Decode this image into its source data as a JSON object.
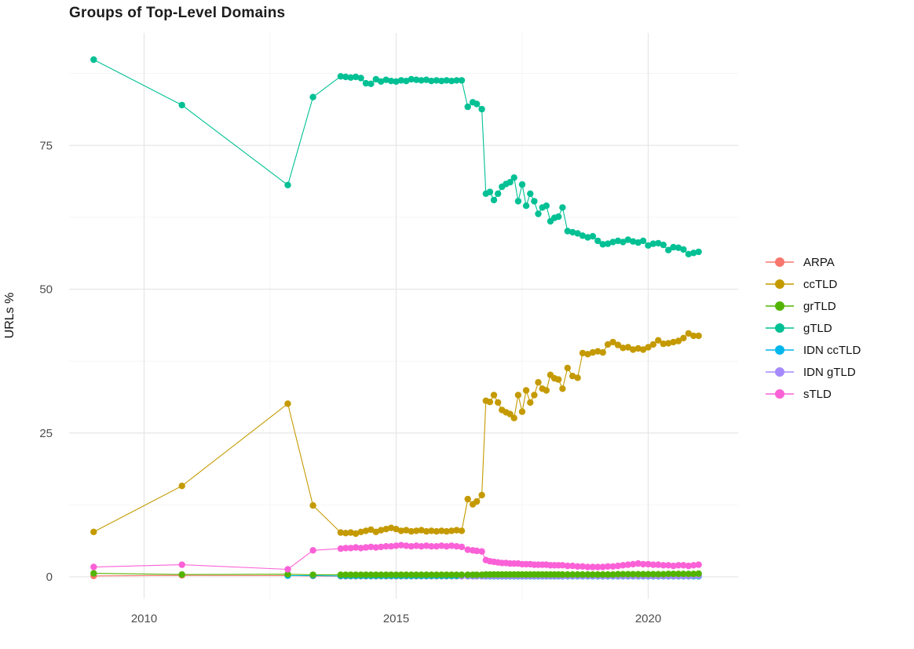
{
  "chart_data": {
    "type": "scatter-line",
    "title": "Groups of Top-Level Domains",
    "ylabel": "URLs %",
    "xlabel": "",
    "grid": true,
    "legend_position": "right",
    "x_ticks": [
      2010,
      2015,
      2020
    ],
    "x_minor": [
      2012.5,
      2017.5
    ],
    "y_ticks": [
      0,
      25,
      50,
      75
    ],
    "y_minor": [
      12.5,
      37.5,
      62.5,
      87.5
    ],
    "xlim": [
      2008.5,
      2021.8
    ],
    "ylim": [
      -3.8,
      94.5
    ],
    "x": [
      2009.0,
      2010.75,
      2012.85,
      2013.35,
      2013.9,
      2014.0,
      2014.1,
      2014.2,
      2014.3,
      2014.4,
      2014.5,
      2014.6,
      2014.7,
      2014.8,
      2014.9,
      2015.0,
      2015.1,
      2015.2,
      2015.3,
      2015.4,
      2015.5,
      2015.6,
      2015.7,
      2015.8,
      2015.9,
      2016.0,
      2016.1,
      2016.2,
      2016.3,
      2016.42,
      2016.52,
      2016.6,
      2016.7,
      2016.78,
      2016.86,
      2016.94,
      2017.02,
      2017.1,
      2017.18,
      2017.26,
      2017.34,
      2017.42,
      2017.5,
      2017.58,
      2017.66,
      2017.74,
      2017.82,
      2017.9,
      2017.98,
      2018.06,
      2018.14,
      2018.22,
      2018.3,
      2018.4,
      2018.5,
      2018.6,
      2018.7,
      2018.8,
      2018.9,
      2019.0,
      2019.1,
      2019.2,
      2019.3,
      2019.4,
      2019.5,
      2019.6,
      2019.7,
      2019.8,
      2019.9,
      2020.0,
      2020.1,
      2020.2,
      2020.3,
      2020.4,
      2020.5,
      2020.6,
      2020.7,
      2020.8,
      2020.9,
      2021.0
    ],
    "series": [
      {
        "name": "ARPA",
        "color": "#F8766D",
        "start_index": 0,
        "values": [
          0.15,
          0.25,
          0.2,
          0.15,
          0.1,
          0.1,
          0.1,
          0.1,
          0.1,
          0.1,
          0.1,
          0.1,
          0.1,
          0.1,
          0.1,
          0.1,
          0.1,
          0.1,
          0.1,
          0.1,
          0.1,
          0.1,
          0.1,
          0.1,
          0.1,
          0.1,
          0.1,
          0.1,
          0.1,
          0.1,
          0.1,
          0.1,
          0.1,
          0.1,
          0.1,
          0.1,
          0.1,
          0.1,
          0.1,
          0.1,
          0.1,
          0.1,
          0.1,
          0.1,
          0.1,
          0.1,
          0.1,
          0.1,
          0.1,
          0.1,
          0.1,
          0.1,
          0.1,
          0.1,
          0.1,
          0.1,
          0.1,
          0.1,
          0.1,
          0.1,
          0.1,
          0.1,
          0.1,
          0.1,
          0.1,
          0.1,
          0.1,
          0.1,
          0.1,
          0.1,
          0.1,
          0.1,
          0.1,
          0.1,
          0.1,
          0.1,
          0.1,
          0.1,
          0.1,
          0.1
        ]
      },
      {
        "name": "ccTLD",
        "color": "#C49A00",
        "start_index": 0,
        "values": [
          7.8,
          15.8,
          30.1,
          12.4,
          7.7,
          7.6,
          7.7,
          7.5,
          7.8,
          8.0,
          8.2,
          7.8,
          8.1,
          8.3,
          8.5,
          8.3,
          8.0,
          8.1,
          7.9,
          8.0,
          8.1,
          7.9,
          8.0,
          7.9,
          8.0,
          7.9,
          8.0,
          8.1,
          8.0,
          13.5,
          12.6,
          13.1,
          14.2,
          30.6,
          30.4,
          31.6,
          30.3,
          29.0,
          28.6,
          28.3,
          27.6,
          31.6,
          28.7,
          32.4,
          30.3,
          31.6,
          33.8,
          32.7,
          32.4,
          35.1,
          34.5,
          34.3,
          32.7,
          36.3,
          34.9,
          34.6,
          38.9,
          38.7,
          39.0,
          39.2,
          39.0,
          40.4,
          40.8,
          40.3,
          39.8,
          39.9,
          39.5,
          39.7,
          39.5,
          39.9,
          40.4,
          41.1,
          40.5,
          40.6,
          40.8,
          41.0,
          41.5,
          42.3,
          41.9,
          41.9
        ]
      },
      {
        "name": "grTLD",
        "color": "#53B400",
        "start_index": 0,
        "values": [
          0.6,
          0.4,
          0.45,
          0.35,
          0.35,
          0.35,
          0.35,
          0.35,
          0.35,
          0.35,
          0.35,
          0.35,
          0.35,
          0.35,
          0.35,
          0.35,
          0.35,
          0.35,
          0.35,
          0.35,
          0.35,
          0.35,
          0.35,
          0.35,
          0.35,
          0.35,
          0.35,
          0.35,
          0.35,
          0.35,
          0.35,
          0.35,
          0.35,
          0.4,
          0.4,
          0.4,
          0.4,
          0.4,
          0.4,
          0.4,
          0.4,
          0.4,
          0.4,
          0.4,
          0.4,
          0.4,
          0.4,
          0.4,
          0.4,
          0.4,
          0.4,
          0.4,
          0.4,
          0.4,
          0.4,
          0.4,
          0.4,
          0.4,
          0.4,
          0.4,
          0.4,
          0.4,
          0.4,
          0.45,
          0.45,
          0.45,
          0.45,
          0.45,
          0.45,
          0.45,
          0.45,
          0.45,
          0.45,
          0.5,
          0.5,
          0.5,
          0.5,
          0.5,
          0.5,
          0.55
        ]
      },
      {
        "name": "gTLD",
        "color": "#00C094",
        "start_index": 0,
        "values": [
          89.9,
          82.0,
          68.1,
          83.4,
          87.0,
          86.9,
          86.8,
          86.9,
          86.7,
          85.8,
          85.7,
          86.5,
          86.1,
          86.4,
          86.2,
          86.1,
          86.3,
          86.2,
          86.5,
          86.4,
          86.3,
          86.4,
          86.2,
          86.3,
          86.2,
          86.3,
          86.2,
          86.3,
          86.3,
          81.7,
          82.5,
          82.2,
          81.3,
          66.6,
          66.9,
          65.5,
          66.6,
          67.8,
          68.3,
          68.6,
          69.4,
          65.3,
          68.2,
          64.5,
          66.6,
          65.3,
          63.1,
          64.2,
          64.5,
          61.8,
          62.4,
          62.6,
          64.2,
          60.1,
          59.9,
          59.7,
          59.3,
          59.0,
          59.2,
          58.4,
          57.8,
          57.9,
          58.2,
          58.4,
          58.2,
          58.6,
          58.3,
          58.1,
          58.4,
          57.6,
          57.9,
          58.0,
          57.7,
          56.8,
          57.3,
          57.2,
          56.9,
          56.1,
          56.3,
          56.5
        ]
      },
      {
        "name": "IDN ccTLD",
        "color": "#00B6EB",
        "start_index": 2,
        "values": [
          0.2,
          0.2,
          0.15,
          0.15,
          0.15,
          0.15,
          0.15,
          0.15,
          0.15,
          0.15,
          0.15,
          0.15,
          0.15,
          0.15,
          0.15,
          0.15,
          0.15,
          0.15,
          0.15,
          0.15,
          0.15,
          0.15,
          0.15,
          0.15,
          0.15,
          0.15,
          0.15,
          0.12,
          0.12,
          0.12,
          0.12,
          0.1,
          0.1,
          0.1,
          0.1,
          0.1,
          0.1,
          0.1,
          0.1,
          0.1,
          0.1,
          0.1,
          0.1,
          0.1,
          0.1,
          0.1,
          0.1,
          0.1,
          0.1,
          0.1,
          0.1,
          0.1,
          0.1,
          0.1,
          0.1,
          0.1,
          0.1,
          0.1,
          0.1,
          0.1,
          0.1,
          0.1,
          0.1,
          0.1,
          0.1,
          0.1,
          0.1,
          0.1,
          0.1,
          0.1,
          0.1,
          0.1,
          0.1,
          0.1,
          0.1,
          0.1,
          0.1,
          0.1
        ]
      },
      {
        "name": "IDN gTLD",
        "color": "#A58AFF",
        "start_index": 28,
        "values": [
          0.15,
          0.15,
          0.15,
          0.15,
          0.15,
          0.15,
          0.15,
          0.15,
          0.15,
          0.15,
          0.15,
          0.15,
          0.15,
          0.15,
          0.15,
          0.15,
          0.15,
          0.15,
          0.15,
          0.15,
          0.15,
          0.15,
          0.15,
          0.15,
          0.15,
          0.15,
          0.15,
          0.15,
          0.15,
          0.15,
          0.15,
          0.15,
          0.15,
          0.15,
          0.15,
          0.15,
          0.15,
          0.15,
          0.15,
          0.15,
          0.15,
          0.15,
          0.15,
          0.15,
          0.15,
          0.15,
          0.15,
          0.15,
          0.15,
          0.15,
          0.2,
          0.2
        ]
      },
      {
        "name": "sTLD",
        "color": "#FB61D7",
        "start_index": 0,
        "values": [
          1.7,
          2.1,
          1.3,
          4.6,
          4.9,
          5.0,
          5.0,
          5.1,
          5.0,
          5.1,
          5.2,
          5.1,
          5.2,
          5.3,
          5.3,
          5.4,
          5.5,
          5.4,
          5.3,
          5.4,
          5.3,
          5.4,
          5.3,
          5.3,
          5.4,
          5.3,
          5.4,
          5.3,
          5.2,
          4.7,
          4.6,
          4.5,
          4.4,
          2.9,
          2.7,
          2.6,
          2.5,
          2.4,
          2.4,
          2.3,
          2.3,
          2.3,
          2.2,
          2.2,
          2.2,
          2.1,
          2.1,
          2.1,
          2.1,
          2.0,
          2.0,
          2.0,
          2.0,
          1.9,
          1.9,
          1.8,
          1.8,
          1.7,
          1.7,
          1.7,
          1.7,
          1.8,
          1.8,
          1.9,
          2.0,
          2.1,
          2.2,
          2.3,
          2.2,
          2.2,
          2.1,
          2.1,
          2.0,
          2.0,
          1.9,
          2.0,
          2.0,
          1.9,
          2.0,
          2.1
        ]
      }
    ]
  },
  "legend": {
    "items": [
      {
        "label": "ARPA"
      },
      {
        "label": "ccTLD"
      },
      {
        "label": "grTLD"
      },
      {
        "label": "gTLD"
      },
      {
        "label": "IDN ccTLD"
      },
      {
        "label": "IDN gTLD"
      },
      {
        "label": "sTLD"
      }
    ]
  },
  "colors": {
    "grid_major": "#E6E6E6",
    "grid_minor": "#F2F2F2",
    "axis_text": "#4d4d4d",
    "background": "#ffffff"
  }
}
